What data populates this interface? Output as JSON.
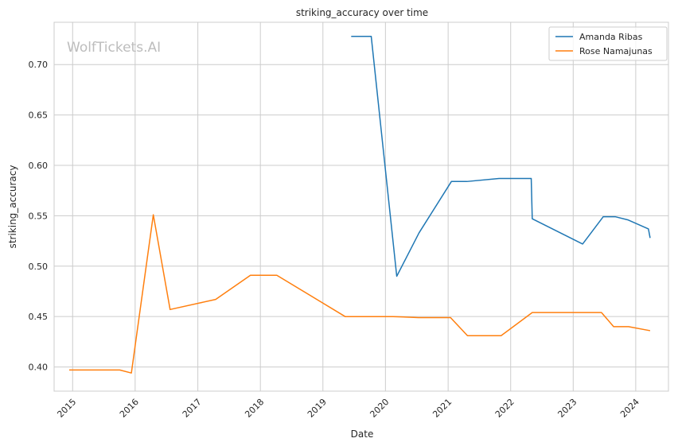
{
  "chart_data": {
    "type": "line",
    "title": "striking_accuracy over time",
    "xlabel": "Date",
    "ylabel": "striking_accuracy",
    "watermark": "WolfTickets.AI",
    "xlim": [
      "2014-09-15",
      "2024-07-10"
    ],
    "ylim": [
      0.376,
      0.742
    ],
    "x_ticks": [
      "2015",
      "2016",
      "2017",
      "2018",
      "2019",
      "2020",
      "2021",
      "2022",
      "2023",
      "2024"
    ],
    "y_ticks": [
      0.4,
      0.45,
      0.5,
      0.55,
      0.6,
      0.65,
      0.7
    ],
    "y_tick_labels": [
      "0.40",
      "0.45",
      "0.50",
      "0.55",
      "0.60",
      "0.65",
      "0.70"
    ],
    "grid": true,
    "legend": "top-right",
    "series": [
      {
        "name": "Amanda Ribas",
        "color": "#1f77b4",
        "points": [
          [
            "2019-06-15",
            0.728
          ],
          [
            "2019-10-10",
            0.728
          ],
          [
            "2020-03-07",
            0.49
          ],
          [
            "2020-07-15",
            0.533
          ],
          [
            "2021-01-20",
            0.584
          ],
          [
            "2021-04-20",
            0.584
          ],
          [
            "2021-10-25",
            0.587
          ],
          [
            "2022-05-01",
            0.587
          ],
          [
            "2022-05-07",
            0.547
          ],
          [
            "2023-02-25",
            0.522
          ],
          [
            "2023-06-25",
            0.549
          ],
          [
            "2023-09-05",
            0.549
          ],
          [
            "2023-11-15",
            0.546
          ],
          [
            "2024-03-15",
            0.537
          ],
          [
            "2024-03-25",
            0.528
          ]
        ]
      },
      {
        "name": "Rose Namajunas",
        "color": "#ff7f0e",
        "points": [
          [
            "2014-12-12",
            0.397
          ],
          [
            "2015-10-03",
            0.397
          ],
          [
            "2015-12-10",
            0.394
          ],
          [
            "2016-04-16",
            0.551
          ],
          [
            "2016-07-23",
            0.457
          ],
          [
            "2017-04-15",
            0.467
          ],
          [
            "2017-11-04",
            0.491
          ],
          [
            "2018-04-07",
            0.491
          ],
          [
            "2019-05-11",
            0.45
          ],
          [
            "2020-02-15",
            0.45
          ],
          [
            "2020-07-11",
            0.449
          ],
          [
            "2021-01-15",
            0.449
          ],
          [
            "2021-04-24",
            0.431
          ],
          [
            "2021-11-06",
            0.431
          ],
          [
            "2022-05-07",
            0.454
          ],
          [
            "2023-06-15",
            0.454
          ],
          [
            "2023-08-25",
            0.44
          ],
          [
            "2023-11-20",
            0.44
          ],
          [
            "2024-03-25",
            0.436
          ]
        ]
      }
    ]
  }
}
